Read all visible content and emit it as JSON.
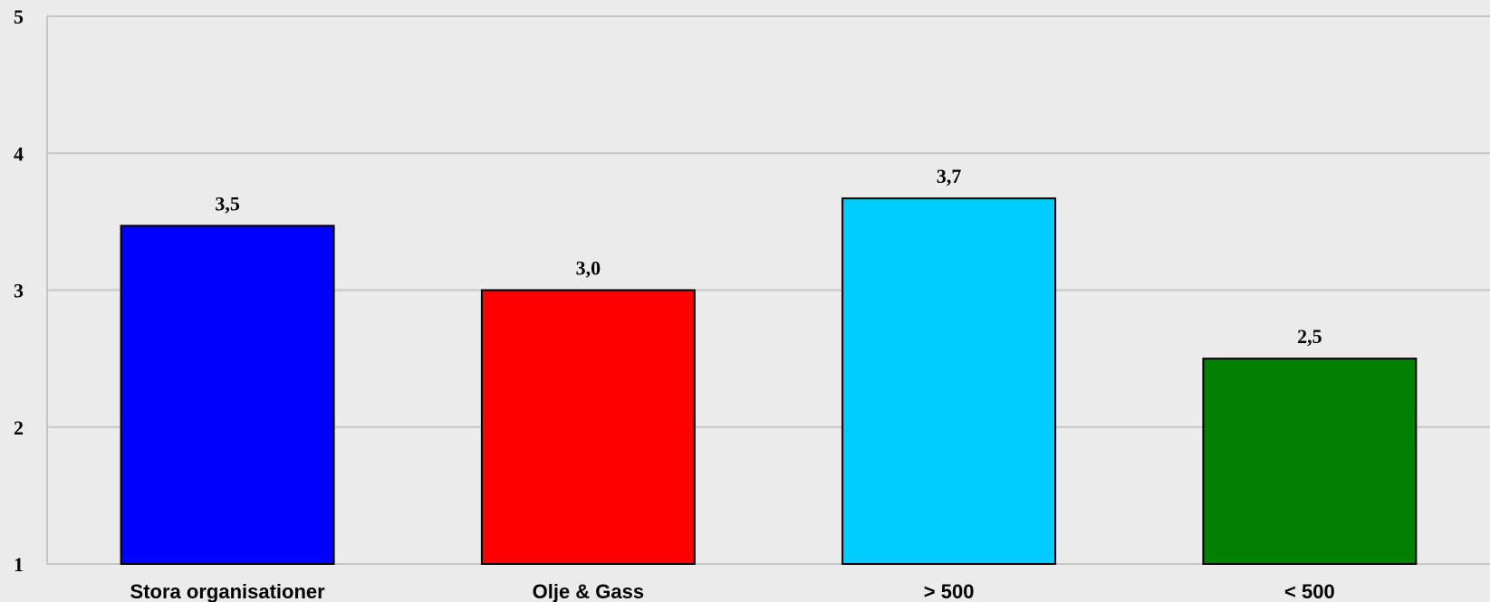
{
  "chart_data": {
    "type": "bar",
    "categories": [
      "Stora organisationer",
      "Olje & Gass",
      "> 500",
      "< 500"
    ],
    "values": [
      3.47,
      3.0,
      3.67,
      2.5
    ],
    "data_labels": [
      "3,5",
      "3,0",
      "3,7",
      "2,5"
    ],
    "colors": [
      "#0000ff",
      "#ff0000",
      "#00ccff",
      "#008000"
    ],
    "ylim": [
      1,
      5
    ],
    "yticks": [
      1,
      2,
      3,
      4,
      5
    ],
    "ytick_labels": [
      "1",
      "2",
      "3",
      "4",
      "5"
    ],
    "grid": true,
    "legend": "none",
    "title": "",
    "xlabel": "",
    "ylabel": ""
  }
}
